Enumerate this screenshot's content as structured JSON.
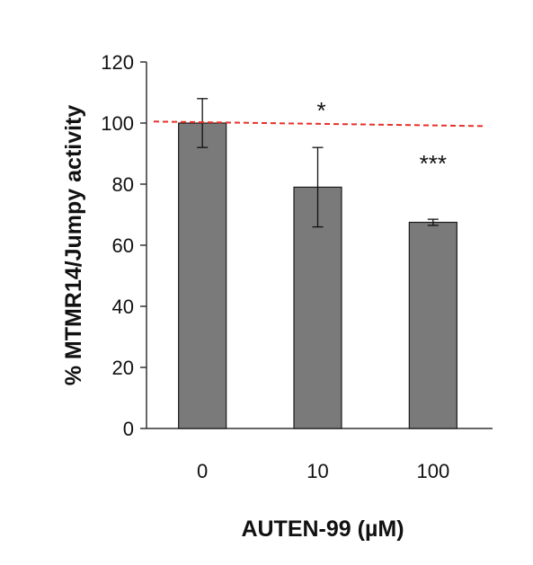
{
  "chart_data": {
    "type": "bar",
    "title": "",
    "xlabel": "AUTEN-99 (µM)",
    "ylabel": "% MTMR14/Jumpy activity",
    "categories": [
      "0",
      "10",
      "100"
    ],
    "values": [
      100,
      79,
      67.5
    ],
    "errors": [
      8,
      13,
      1
    ],
    "significance": [
      "",
      "*",
      "***"
    ],
    "ylim": [
      0,
      120
    ],
    "yticks": [
      0,
      20,
      40,
      60,
      80,
      100,
      120
    ],
    "reference_line": {
      "y_start": 100.5,
      "y_end": 99,
      "style": "dashed",
      "color": "#e8302a"
    },
    "bar_color": "#7a7a7a",
    "grid": false,
    "legend": "none"
  }
}
